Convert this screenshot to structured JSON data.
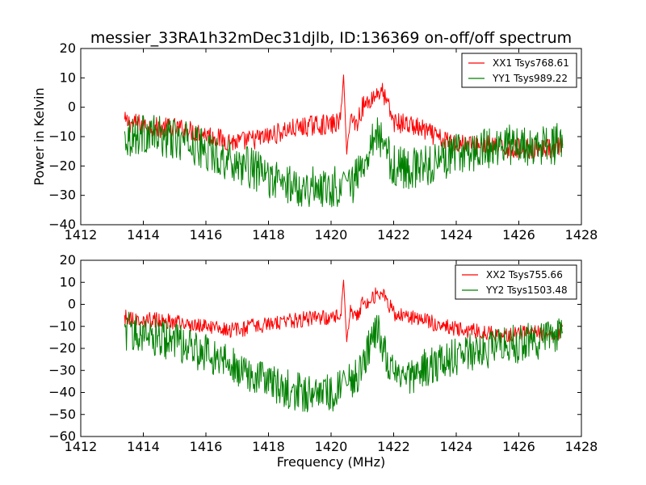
{
  "chart_data": [
    {
      "type": "line",
      "title": "messier_33RA1h32mDec31djlb, ID:136369 on-off/off spectrum",
      "xlabel": "",
      "ylabel": "Power in Kelvin",
      "xlim": [
        1412,
        1428
      ],
      "ylim": [
        -40,
        20
      ],
      "xticks": [
        "1412",
        "1414",
        "1416",
        "1418",
        "1420",
        "1422",
        "1424",
        "1426",
        "1428"
      ],
      "yticks": [
        "-40",
        "-30",
        "-20",
        "-10",
        "0",
        "10",
        "20"
      ],
      "legend_position": "top-right",
      "series": [
        {
          "name": "XX1 Tsys768.61",
          "color": "#ff0000",
          "points": [
            [
              1413.4,
              -5
            ],
            [
              1414,
              -6
            ],
            [
              1414.5,
              -7
            ],
            [
              1415,
              -7
            ],
            [
              1415.5,
              -8
            ],
            [
              1416,
              -9
            ],
            [
              1416.5,
              -11
            ],
            [
              1417,
              -12
            ],
            [
              1417.5,
              -11
            ],
            [
              1418,
              -10
            ],
            [
              1418.5,
              -8
            ],
            [
              1419,
              -7
            ],
            [
              1419.5,
              -6
            ],
            [
              1420,
              -6
            ],
            [
              1420.3,
              -5
            ],
            [
              1420.4,
              11
            ],
            [
              1420.5,
              -16
            ],
            [
              1420.6,
              -3
            ],
            [
              1420.8,
              -6
            ],
            [
              1421,
              0
            ],
            [
              1421.3,
              3
            ],
            [
              1421.6,
              6
            ],
            [
              1421.8,
              1
            ],
            [
              1422,
              -5
            ],
            [
              1422.5,
              -6
            ],
            [
              1423,
              -8
            ],
            [
              1423.5,
              -11
            ],
            [
              1424,
              -12
            ],
            [
              1424.5,
              -13
            ],
            [
              1425,
              -13
            ],
            [
              1425.5,
              -14
            ],
            [
              1426,
              -14
            ],
            [
              1426.5,
              -14
            ],
            [
              1427,
              -14
            ],
            [
              1427.4,
              -13
            ]
          ]
        },
        {
          "name": "YY1 Tsys989.22",
          "color": "#008000",
          "points": [
            [
              1413.4,
              -10
            ],
            [
              1414,
              -9
            ],
            [
              1414.5,
              -10
            ],
            [
              1415,
              -11
            ],
            [
              1415.5,
              -12
            ],
            [
              1416,
              -15
            ],
            [
              1416.5,
              -17
            ],
            [
              1417,
              -19
            ],
            [
              1417.5,
              -21
            ],
            [
              1418,
              -24
            ],
            [
              1418.5,
              -26
            ],
            [
              1419,
              -27
            ],
            [
              1419.5,
              -27
            ],
            [
              1420,
              -27
            ],
            [
              1420.3,
              -27
            ],
            [
              1420.4,
              -22
            ],
            [
              1420.5,
              -25
            ],
            [
              1420.7,
              -26
            ],
            [
              1421,
              -20
            ],
            [
              1421.3,
              -10
            ],
            [
              1421.5,
              -9
            ],
            [
              1421.8,
              -16
            ],
            [
              1422,
              -20
            ],
            [
              1422.5,
              -21
            ],
            [
              1423,
              -20
            ],
            [
              1423.5,
              -18
            ],
            [
              1424,
              -16
            ],
            [
              1424.5,
              -15
            ],
            [
              1425,
              -14
            ],
            [
              1425.5,
              -13
            ],
            [
              1426,
              -13
            ],
            [
              1426.5,
              -14
            ],
            [
              1427,
              -13
            ],
            [
              1427.4,
              -12
            ]
          ]
        }
      ]
    },
    {
      "type": "line",
      "title": "",
      "xlabel": "Frequency (MHz)",
      "ylabel": "",
      "xlim": [
        1412,
        1428
      ],
      "ylim": [
        -60,
        20
      ],
      "xticks": [
        "1412",
        "1414",
        "1416",
        "1418",
        "1420",
        "1422",
        "1424",
        "1426",
        "1428"
      ],
      "yticks": [
        "-60",
        "-50",
        "-40",
        "-30",
        "-20",
        "-10",
        "0",
        "10",
        "20"
      ],
      "legend_position": "top-right",
      "series": [
        {
          "name": "XX2 Tsys755.66",
          "color": "#ff0000",
          "points": [
            [
              1413.4,
              -6
            ],
            [
              1414,
              -7
            ],
            [
              1414.5,
              -7
            ],
            [
              1415,
              -8
            ],
            [
              1415.5,
              -9
            ],
            [
              1416,
              -10
            ],
            [
              1416.5,
              -11
            ],
            [
              1417,
              -12
            ],
            [
              1417.5,
              -10
            ],
            [
              1418,
              -9
            ],
            [
              1418.5,
              -8
            ],
            [
              1419,
              -7
            ],
            [
              1419.5,
              -6
            ],
            [
              1420,
              -6
            ],
            [
              1420.3,
              -5
            ],
            [
              1420.4,
              11
            ],
            [
              1420.5,
              -17
            ],
            [
              1420.6,
              -3
            ],
            [
              1420.8,
              -6
            ],
            [
              1421,
              0
            ],
            [
              1421.3,
              3
            ],
            [
              1421.6,
              6
            ],
            [
              1421.8,
              1
            ],
            [
              1422,
              -4
            ],
            [
              1422.5,
              -6
            ],
            [
              1423,
              -7
            ],
            [
              1423.5,
              -10
            ],
            [
              1424,
              -11
            ],
            [
              1424.5,
              -12
            ],
            [
              1425,
              -13
            ],
            [
              1425.5,
              -14
            ],
            [
              1426,
              -13
            ],
            [
              1426.5,
              -13
            ],
            [
              1427,
              -13
            ],
            [
              1427.4,
              -12
            ]
          ]
        },
        {
          "name": "YY2 Tsys1503.48",
          "color": "#008000",
          "points": [
            [
              1413.4,
              -12
            ],
            [
              1414,
              -13
            ],
            [
              1414.5,
              -15
            ],
            [
              1415,
              -17
            ],
            [
              1415.5,
              -20
            ],
            [
              1416,
              -22
            ],
            [
              1416.5,
              -25
            ],
            [
              1417,
              -28
            ],
            [
              1417.5,
              -32
            ],
            [
              1418,
              -36
            ],
            [
              1418.5,
              -38
            ],
            [
              1419,
              -40
            ],
            [
              1419.5,
              -40
            ],
            [
              1420,
              -40
            ],
            [
              1420.3,
              -39
            ],
            [
              1420.4,
              -30
            ],
            [
              1420.5,
              -37
            ],
            [
              1420.7,
              -35
            ],
            [
              1421,
              -28
            ],
            [
              1421.3,
              -15
            ],
            [
              1421.5,
              -13
            ],
            [
              1421.8,
              -25
            ],
            [
              1422,
              -30
            ],
            [
              1422.5,
              -32
            ],
            [
              1423,
              -29
            ],
            [
              1423.5,
              -26
            ],
            [
              1424,
              -24
            ],
            [
              1424.5,
              -22
            ],
            [
              1425,
              -21
            ],
            [
              1425.5,
              -19
            ],
            [
              1426,
              -18
            ],
            [
              1426.5,
              -17
            ],
            [
              1427,
              -16
            ],
            [
              1427.4,
              -15
            ]
          ]
        }
      ]
    }
  ]
}
